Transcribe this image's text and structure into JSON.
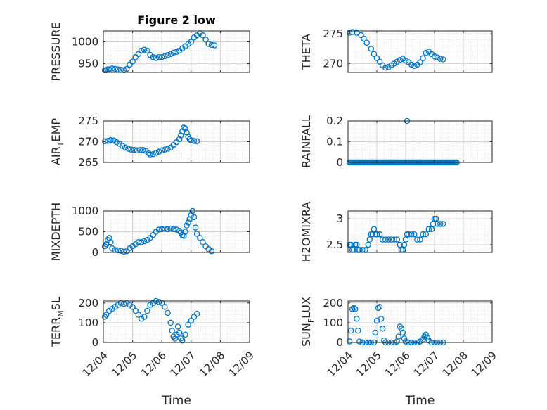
{
  "figure": {
    "title": "Figure 2 low",
    "xlabels": [
      "Time",
      "Time"
    ],
    "xtick_labels": [
      "12/04",
      "12/05",
      "12/06",
      "12/07",
      "12/08",
      "12/09"
    ],
    "marker_color": "#0072BD"
  },
  "chart_data": [
    {
      "type": "scatter",
      "ylabel": "PRESSURE",
      "ylabel_sub": "",
      "ylabel_tail": "",
      "title": "Figure 2 low",
      "xlim": [
        "12/04",
        "12/09"
      ],
      "ylim": [
        930,
        1025
      ],
      "yticks": [
        950,
        1000
      ],
      "grid": true,
      "points": [
        [
          0.05,
          935
        ],
        [
          0.1,
          935
        ],
        [
          0.15,
          937
        ],
        [
          0.2,
          937
        ],
        [
          0.3,
          939
        ],
        [
          0.4,
          938
        ],
        [
          0.5,
          937
        ],
        [
          0.6,
          936
        ],
        [
          0.7,
          935
        ],
        [
          0.8,
          938
        ],
        [
          0.9,
          948
        ],
        [
          1.0,
          955
        ],
        [
          1.1,
          965
        ],
        [
          1.2,
          972
        ],
        [
          1.3,
          980
        ],
        [
          1.4,
          982
        ],
        [
          1.5,
          980
        ],
        [
          1.6,
          970
        ],
        [
          1.7,
          965
        ],
        [
          1.8,
          963
        ],
        [
          1.9,
          965
        ],
        [
          2.0,
          965
        ],
        [
          2.1,
          967
        ],
        [
          2.2,
          970
        ],
        [
          2.3,
          972
        ],
        [
          2.4,
          975
        ],
        [
          2.5,
          977
        ],
        [
          2.6,
          980
        ],
        [
          2.7,
          985
        ],
        [
          2.8,
          990
        ],
        [
          2.9,
          995
        ],
        [
          3.0,
          1000
        ],
        [
          3.1,
          1010
        ],
        [
          3.2,
          1015
        ],
        [
          3.3,
          1020
        ],
        [
          3.4,
          1015
        ],
        [
          3.5,
          1005
        ],
        [
          3.6,
          995
        ],
        [
          3.7,
          993
        ],
        [
          3.8,
          992
        ]
      ]
    },
    {
      "type": "scatter",
      "ylabel": "THETA",
      "ylabel_sub": "",
      "ylabel_tail": "",
      "xlim": [
        "12/04",
        "12/09"
      ],
      "ylim": [
        268.5,
        275.5
      ],
      "yticks": [
        270,
        275
      ],
      "grid": true,
      "points": [
        [
          0.05,
          275.2
        ],
        [
          0.15,
          275.3
        ],
        [
          0.3,
          275.2
        ],
        [
          0.45,
          274.8
        ],
        [
          0.55,
          274.2
        ],
        [
          0.65,
          273.5
        ],
        [
          0.8,
          272.5
        ],
        [
          0.9,
          271.6
        ],
        [
          1.0,
          270.9
        ],
        [
          1.1,
          270.3
        ],
        [
          1.2,
          269.7
        ],
        [
          1.3,
          269.3
        ],
        [
          1.4,
          269.4
        ],
        [
          1.5,
          269.7
        ],
        [
          1.6,
          270
        ],
        [
          1.7,
          270.3
        ],
        [
          1.8,
          270.6
        ],
        [
          1.9,
          270.8
        ],
        [
          2.0,
          270.5
        ],
        [
          2.1,
          270.2
        ],
        [
          2.2,
          269.8
        ],
        [
          2.3,
          269.6
        ],
        [
          2.4,
          269.8
        ],
        [
          2.5,
          270.2
        ],
        [
          2.6,
          270.9
        ],
        [
          2.7,
          271.8
        ],
        [
          2.8,
          272
        ],
        [
          2.9,
          271.6
        ],
        [
          3.0,
          271.2
        ],
        [
          3.1,
          271
        ],
        [
          3.2,
          270.8
        ],
        [
          3.3,
          270.7
        ]
      ]
    },
    {
      "type": "scatter",
      "ylabel": "AIR",
      "ylabel_sub": "T",
      "ylabel_tail": "EMP",
      "xlim": [
        "12/04",
        "12/09"
      ],
      "ylim": [
        265,
        275
      ],
      "yticks": [
        265,
        270,
        275
      ],
      "grid": true,
      "points": [
        [
          0.05,
          270.1
        ],
        [
          0.15,
          270.2
        ],
        [
          0.25,
          270.4
        ],
        [
          0.35,
          270.3
        ],
        [
          0.45,
          269.9
        ],
        [
          0.55,
          269.5
        ],
        [
          0.65,
          269
        ],
        [
          0.75,
          268.6
        ],
        [
          0.85,
          268.3
        ],
        [
          0.95,
          268.1
        ],
        [
          1.05,
          268
        ],
        [
          1.15,
          267.9
        ],
        [
          1.25,
          268
        ],
        [
          1.35,
          268
        ],
        [
          1.45,
          267.8
        ],
        [
          1.55,
          267.2
        ],
        [
          1.6,
          266.9
        ],
        [
          1.7,
          267
        ],
        [
          1.8,
          267.3
        ],
        [
          1.9,
          267.6
        ],
        [
          2.0,
          267.9
        ],
        [
          2.1,
          268.1
        ],
        [
          2.2,
          268.3
        ],
        [
          2.3,
          268.6
        ],
        [
          2.4,
          269.2
        ],
        [
          2.5,
          269.9
        ],
        [
          2.6,
          270.6
        ],
        [
          2.65,
          271.5
        ],
        [
          2.7,
          272.5
        ],
        [
          2.75,
          273.4
        ],
        [
          2.8,
          273.2
        ],
        [
          2.85,
          272.2
        ],
        [
          2.9,
          271.2
        ],
        [
          2.95,
          270.6
        ],
        [
          3.0,
          270.3
        ],
        [
          3.1,
          270.2
        ],
        [
          3.2,
          270.1
        ]
      ]
    },
    {
      "type": "scatter",
      "ylabel": "RAINFALL",
      "ylabel_sub": "",
      "ylabel_tail": "",
      "xlim": [
        "12/04",
        "12/09"
      ],
      "ylim": [
        0,
        0.2
      ],
      "yticks": [
        0,
        0.1,
        0.2
      ],
      "grid": true,
      "rain_zero_range": [
        0.05,
        3.8
      ],
      "points": [
        [
          2.05,
          0.2
        ]
      ]
    },
    {
      "type": "scatter",
      "ylabel": "MIXDEPTH",
      "ylabel_sub": "",
      "ylabel_tail": "",
      "xlim": [
        "12/04",
        "12/09"
      ],
      "ylim": [
        0,
        1000
      ],
      "yticks": [
        0,
        500,
        1000
      ],
      "grid": true,
      "points": [
        [
          0.05,
          150
        ],
        [
          0.1,
          200
        ],
        [
          0.15,
          300
        ],
        [
          0.2,
          350
        ],
        [
          0.25,
          250
        ],
        [
          0.3,
          100
        ],
        [
          0.4,
          60
        ],
        [
          0.5,
          50
        ],
        [
          0.6,
          40
        ],
        [
          0.7,
          20
        ],
        [
          0.8,
          30
        ],
        [
          0.9,
          100
        ],
        [
          1.0,
          150
        ],
        [
          1.1,
          200
        ],
        [
          1.2,
          250
        ],
        [
          1.3,
          250
        ],
        [
          1.4,
          270
        ],
        [
          1.5,
          300
        ],
        [
          1.6,
          350
        ],
        [
          1.7,
          420
        ],
        [
          1.8,
          500
        ],
        [
          1.9,
          550
        ],
        [
          2.0,
          560
        ],
        [
          2.1,
          570
        ],
        [
          2.2,
          560
        ],
        [
          2.3,
          570
        ],
        [
          2.4,
          560
        ],
        [
          2.5,
          550
        ],
        [
          2.6,
          520
        ],
        [
          2.65,
          480
        ],
        [
          2.7,
          420
        ],
        [
          2.75,
          400
        ],
        [
          2.8,
          500
        ],
        [
          2.85,
          650
        ],
        [
          2.9,
          720
        ],
        [
          2.95,
          800
        ],
        [
          3.0,
          900
        ],
        [
          3.05,
          1000
        ],
        [
          3.1,
          850
        ],
        [
          3.15,
          600
        ],
        [
          3.2,
          450
        ],
        [
          3.3,
          350
        ],
        [
          3.4,
          250
        ],
        [
          3.5,
          150
        ],
        [
          3.6,
          80
        ],
        [
          3.7,
          30
        ]
      ]
    },
    {
      "type": "scatter",
      "ylabel": "H2OMIXRA",
      "ylabel_sub": "",
      "ylabel_tail": "",
      "xlim": [
        "12/04",
        "12/09"
      ],
      "ylim": [
        2.35,
        3.15
      ],
      "yticks": [
        2.5,
        3
      ],
      "grid": true,
      "points": [
        [
          0.05,
          2.5
        ],
        [
          0.1,
          2.5
        ],
        [
          0.15,
          2.4
        ],
        [
          0.2,
          2.4
        ],
        [
          0.25,
          2.5
        ],
        [
          0.3,
          2.5
        ],
        [
          0.35,
          2.4
        ],
        [
          0.4,
          2.4
        ],
        [
          0.5,
          2.4
        ],
        [
          0.6,
          2.4
        ],
        [
          0.7,
          2.5
        ],
        [
          0.75,
          2.6
        ],
        [
          0.8,
          2.7
        ],
        [
          0.85,
          2.7
        ],
        [
          0.9,
          2.8
        ],
        [
          0.95,
          2.7
        ],
        [
          1.0,
          2.7
        ],
        [
          1.1,
          2.7
        ],
        [
          1.2,
          2.6
        ],
        [
          1.3,
          2.6
        ],
        [
          1.4,
          2.6
        ],
        [
          1.5,
          2.6
        ],
        [
          1.6,
          2.6
        ],
        [
          1.7,
          2.6
        ],
        [
          1.8,
          2.5
        ],
        [
          1.85,
          2.4
        ],
        [
          1.9,
          2.4
        ],
        [
          1.95,
          2.5
        ],
        [
          2.0,
          2.6
        ],
        [
          2.05,
          2.7
        ],
        [
          2.1,
          2.7
        ],
        [
          2.2,
          2.7
        ],
        [
          2.3,
          2.7
        ],
        [
          2.4,
          2.6
        ],
        [
          2.5,
          2.6
        ],
        [
          2.6,
          2.7
        ],
        [
          2.7,
          2.7
        ],
        [
          2.8,
          2.8
        ],
        [
          2.9,
          2.8
        ],
        [
          2.95,
          2.9
        ],
        [
          3.0,
          3.0
        ],
        [
          3.05,
          3.0
        ],
        [
          3.1,
          2.9
        ],
        [
          3.2,
          2.9
        ],
        [
          3.3,
          2.9
        ]
      ]
    },
    {
      "type": "scatter",
      "ylabel": "TERR",
      "ylabel_sub": "M",
      "ylabel_tail": "SL",
      "xlim": [
        "12/04",
        "12/09"
      ],
      "ylim": [
        0,
        210
      ],
      "yticks": [
        0,
        100,
        200
      ],
      "grid": true,
      "points": [
        [
          0.05,
          130
        ],
        [
          0.1,
          140
        ],
        [
          0.2,
          160
        ],
        [
          0.3,
          170
        ],
        [
          0.4,
          180
        ],
        [
          0.5,
          190
        ],
        [
          0.6,
          200
        ],
        [
          0.7,
          195
        ],
        [
          0.8,
          200
        ],
        [
          0.9,
          190
        ],
        [
          1.0,
          180
        ],
        [
          1.1,
          160
        ],
        [
          1.2,
          140
        ],
        [
          1.3,
          120
        ],
        [
          1.4,
          130
        ],
        [
          1.5,
          160
        ],
        [
          1.6,
          190
        ],
        [
          1.7,
          200
        ],
        [
          1.8,
          210
        ],
        [
          1.9,
          205
        ],
        [
          2.0,
          200
        ],
        [
          2.1,
          180
        ],
        [
          2.2,
          150
        ],
        [
          2.3,
          100
        ],
        [
          2.35,
          60
        ],
        [
          2.4,
          30
        ],
        [
          2.45,
          20
        ],
        [
          2.5,
          40
        ],
        [
          2.55,
          80
        ],
        [
          2.6,
          50
        ],
        [
          2.65,
          20
        ],
        [
          2.7,
          10
        ],
        [
          2.8,
          40
        ],
        [
          2.9,
          90
        ],
        [
          3.0,
          110
        ],
        [
          3.1,
          130
        ],
        [
          3.2,
          145
        ]
      ]
    },
    {
      "type": "scatter",
      "ylabel": "SUN",
      "ylabel_sub": "F",
      "ylabel_tail": "LUX",
      "xlim": [
        "12/04",
        "12/09"
      ],
      "ylim": [
        0,
        210
      ],
      "yticks": [
        0,
        100,
        200
      ],
      "grid": true,
      "points": [
        [
          0.05,
          5
        ],
        [
          0.1,
          60
        ],
        [
          0.15,
          170
        ],
        [
          0.2,
          175
        ],
        [
          0.25,
          170
        ],
        [
          0.3,
          120
        ],
        [
          0.35,
          60
        ],
        [
          0.4,
          5
        ],
        [
          0.5,
          0
        ],
        [
          0.6,
          0
        ],
        [
          0.7,
          0
        ],
        [
          0.8,
          0
        ],
        [
          0.9,
          0
        ],
        [
          0.95,
          50
        ],
        [
          1.0,
          110
        ],
        [
          1.05,
          175
        ],
        [
          1.1,
          180
        ],
        [
          1.15,
          120
        ],
        [
          1.2,
          70
        ],
        [
          1.25,
          10
        ],
        [
          1.3,
          0
        ],
        [
          1.4,
          0
        ],
        [
          1.5,
          0
        ],
        [
          1.6,
          0
        ],
        [
          1.7,
          5
        ],
        [
          1.75,
          30
        ],
        [
          1.8,
          80
        ],
        [
          1.85,
          70
        ],
        [
          1.9,
          50
        ],
        [
          1.95,
          20
        ],
        [
          2.0,
          5
        ],
        [
          2.1,
          0
        ],
        [
          2.2,
          0
        ],
        [
          2.3,
          0
        ],
        [
          2.4,
          0
        ],
        [
          2.5,
          5
        ],
        [
          2.6,
          15
        ],
        [
          2.65,
          30
        ],
        [
          2.7,
          40
        ],
        [
          2.75,
          25
        ],
        [
          2.8,
          10
        ],
        [
          2.9,
          0
        ],
        [
          3.0,
          0
        ],
        [
          3.1,
          0
        ],
        [
          3.2,
          0
        ],
        [
          3.3,
          0
        ]
      ]
    }
  ]
}
